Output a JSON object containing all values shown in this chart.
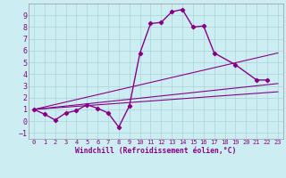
{
  "xlabel": "Windchill (Refroidissement éolien,°C)",
  "bg_color": "#cceef2",
  "grid_color": "#aad4d8",
  "line_color": "#880088",
  "xlim": [
    -0.5,
    23.5
  ],
  "ylim": [
    -1.5,
    10.0
  ],
  "yticks": [
    -1,
    0,
    1,
    2,
    3,
    4,
    5,
    6,
    7,
    8,
    9
  ],
  "xticks": [
    0,
    1,
    2,
    3,
    4,
    5,
    6,
    7,
    8,
    9,
    10,
    11,
    12,
    13,
    14,
    15,
    16,
    17,
    18,
    19,
    20,
    21,
    22,
    23
  ],
  "main_x": [
    0,
    1,
    2,
    3,
    4,
    5,
    6,
    7,
    8,
    9,
    10,
    11,
    12,
    13,
    14,
    15,
    16,
    17,
    19,
    21,
    22
  ],
  "main_y": [
    1.0,
    0.6,
    0.1,
    0.7,
    0.9,
    1.4,
    1.1,
    0.7,
    -0.5,
    1.3,
    5.8,
    8.3,
    8.4,
    9.3,
    9.5,
    8.0,
    8.1,
    5.8,
    4.8,
    3.5,
    3.5
  ],
  "line1": [
    [
      0,
      23
    ],
    [
      1.0,
      3.2
    ]
  ],
  "line2": [
    [
      0,
      23
    ],
    [
      1.0,
      5.8
    ]
  ],
  "line3": [
    [
      0,
      23
    ],
    [
      1.0,
      2.5
    ]
  ]
}
